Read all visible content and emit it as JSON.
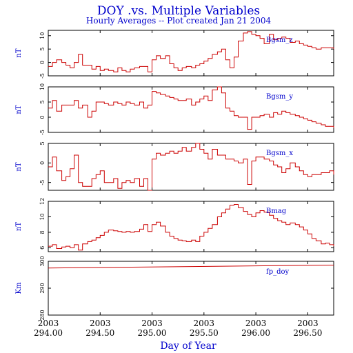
{
  "title": "DOY .vs. Multiple Variables",
  "subtitle": "Hourly Averages -- Plot created Jan 21 2004",
  "colors": {
    "text": "#0000cc",
    "trace": "#cc0000",
    "axis": "#000000"
  },
  "chart_data": {
    "type": "line",
    "xlabel": "Day of Year",
    "xlim": [
      294.0,
      296.5
    ],
    "x_ticks": [
      294.0,
      294.5,
      295.0,
      295.5,
      296.0,
      296.5
    ],
    "x_tick_year": "2003",
    "x_tick_labels": [
      "294.00",
      "294.50",
      "295.00",
      "295.50",
      "296.00",
      "296.50"
    ],
    "panels": [
      {
        "name": "Bgsm_z",
        "ylabel": "nT",
        "ylim": [
          -5,
          12
        ],
        "y_ticks": [
          -5,
          0,
          5,
          10
        ],
        "y_tick_labels": [
          "-5",
          "0",
          "5",
          "10"
        ],
        "x": [
          294.0,
          294.04,
          294.08,
          294.13,
          294.17,
          294.21,
          294.25,
          294.29,
          294.33,
          294.38,
          294.42,
          294.46,
          294.5,
          294.54,
          294.58,
          294.63,
          294.67,
          294.71,
          294.75,
          294.79,
          294.83,
          294.88,
          294.92,
          294.96,
          295.0,
          295.04,
          295.08,
          295.13,
          295.17,
          295.21,
          295.25,
          295.29,
          295.33,
          295.38,
          295.42,
          295.46,
          295.5,
          295.54,
          295.58,
          295.63,
          295.67,
          295.71,
          295.75,
          295.79,
          295.83,
          295.88,
          295.92,
          295.96,
          296.0,
          296.04,
          296.08,
          296.13,
          296.17,
          296.21,
          296.25,
          296.29,
          296.33,
          296.38,
          296.42,
          296.46,
          296.5,
          296.54,
          296.58,
          296.63,
          296.67,
          296.71,
          296.75
        ],
        "y": [
          -1.5,
          0.0,
          1.0,
          0.0,
          -1.0,
          -2.0,
          0.0,
          3.0,
          -1.0,
          -1.0,
          -2.5,
          -1.5,
          -3.0,
          -2.5,
          -3.0,
          -3.5,
          -2.0,
          -3.0,
          -3.5,
          -2.5,
          -2.0,
          -1.5,
          -1.5,
          -3.5,
          1.0,
          2.5,
          1.5,
          2.5,
          -0.5,
          -2.0,
          -3.0,
          -2.0,
          -1.5,
          -2.0,
          -1.0,
          -0.5,
          0.5,
          1.5,
          3.0,
          4.0,
          5.0,
          1.0,
          -2.0,
          2.0,
          8.0,
          11.0,
          11.5,
          10.5,
          10.0,
          9.0,
          7.0,
          10.5,
          8.5,
          9.0,
          9.5,
          9.0,
          7.5,
          8.0,
          7.0,
          6.5,
          6.0,
          5.5,
          5.0,
          5.5,
          5.5,
          5.5,
          5.0
        ]
      },
      {
        "name": "Bgsm_y",
        "ylabel": "nT",
        "ylim": [
          -5,
          10
        ],
        "y_ticks": [
          -5,
          0,
          5,
          10
        ],
        "y_tick_labels": [
          "-5",
          "0",
          "5",
          "10"
        ],
        "x": [
          294.0,
          294.04,
          294.08,
          294.13,
          294.17,
          294.21,
          294.25,
          294.29,
          294.33,
          294.38,
          294.42,
          294.46,
          294.5,
          294.54,
          294.58,
          294.63,
          294.67,
          294.71,
          294.75,
          294.79,
          294.83,
          294.88,
          294.92,
          294.96,
          295.0,
          295.04,
          295.08,
          295.13,
          295.17,
          295.21,
          295.25,
          295.29,
          295.33,
          295.38,
          295.42,
          295.46,
          295.5,
          295.54,
          295.58,
          295.63,
          295.67,
          295.71,
          295.75,
          295.79,
          295.83,
          295.88,
          295.92,
          295.96,
          296.0,
          296.04,
          296.08,
          296.13,
          296.17,
          296.21,
          296.25,
          296.29,
          296.33,
          296.38,
          296.42,
          296.46,
          296.5,
          296.54,
          296.58,
          296.63,
          296.67,
          296.71,
          296.75
        ],
        "y": [
          3.0,
          5.5,
          2.0,
          4.0,
          4.0,
          4.0,
          5.5,
          3.0,
          4.0,
          0.0,
          2.0,
          5.0,
          5.0,
          4.5,
          4.0,
          5.0,
          4.5,
          4.0,
          5.0,
          4.5,
          4.0,
          5.0,
          3.0,
          4.0,
          8.5,
          8.0,
          7.5,
          7.0,
          6.5,
          6.0,
          5.5,
          5.5,
          6.0,
          4.0,
          5.0,
          6.0,
          7.0,
          5.5,
          9.0,
          10.0,
          8.0,
          3.0,
          2.0,
          0.5,
          0.0,
          0.0,
          -4.0,
          0.0,
          0.0,
          0.5,
          1.0,
          0.0,
          1.5,
          1.0,
          2.0,
          1.5,
          1.0,
          0.5,
          0.0,
          -0.5,
          -1.0,
          -1.5,
          -2.0,
          -2.5,
          -3.0,
          -3.0,
          -3.5
        ]
      },
      {
        "name": "Bgsm_x",
        "ylabel": "nT",
        "ylim": [
          -7,
          5
        ],
        "y_ticks": [
          -5,
          0,
          5
        ],
        "y_tick_labels": [
          "-5",
          "0",
          "5"
        ],
        "x": [
          294.0,
          294.04,
          294.08,
          294.13,
          294.17,
          294.21,
          294.25,
          294.29,
          294.33,
          294.38,
          294.42,
          294.46,
          294.5,
          294.54,
          294.58,
          294.63,
          294.67,
          294.71,
          294.75,
          294.79,
          294.83,
          294.88,
          294.92,
          294.96,
          295.0,
          295.04,
          295.08,
          295.13,
          295.17,
          295.21,
          295.25,
          295.29,
          295.33,
          295.38,
          295.42,
          295.46,
          295.5,
          295.54,
          295.58,
          295.63,
          295.67,
          295.71,
          295.75,
          295.79,
          295.83,
          295.88,
          295.92,
          295.96,
          296.0,
          296.04,
          296.08,
          296.13,
          296.17,
          296.21,
          296.25,
          296.29,
          296.33,
          296.38,
          296.42,
          296.46,
          296.5,
          296.54,
          296.58,
          296.63,
          296.67,
          296.71,
          296.75
        ],
        "y": [
          -1.0,
          1.5,
          -2.0,
          -4.5,
          -3.5,
          -1.5,
          2.0,
          -5.0,
          -6.0,
          -6.0,
          -4.0,
          -3.0,
          -2.0,
          -5.0,
          -5.0,
          -4.0,
          -6.5,
          -5.0,
          -4.5,
          -5.0,
          -4.0,
          -6.0,
          -4.0,
          -7.0,
          1.0,
          2.5,
          2.0,
          2.5,
          3.0,
          2.5,
          3.0,
          4.0,
          3.0,
          4.0,
          5.0,
          3.5,
          2.5,
          1.0,
          3.5,
          2.0,
          2.0,
          1.0,
          1.0,
          0.5,
          0.0,
          1.0,
          -5.5,
          0.5,
          1.5,
          1.5,
          1.0,
          0.5,
          -0.5,
          -1.0,
          -2.5,
          -1.5,
          0.0,
          -1.0,
          -2.0,
          -3.0,
          -3.5,
          -3.0,
          -3.0,
          -2.5,
          -2.5,
          -2.0,
          -3.0
        ]
      },
      {
        "name": "Bmag",
        "ylabel": "nT",
        "ylim": [
          5.5,
          12
        ],
        "y_ticks": [
          6,
          8,
          10,
          12
        ],
        "y_tick_labels": [
          "6",
          "8",
          "10",
          "12"
        ],
        "x": [
          294.0,
          294.04,
          294.08,
          294.13,
          294.17,
          294.21,
          294.25,
          294.29,
          294.33,
          294.38,
          294.42,
          294.46,
          294.5,
          294.54,
          294.58,
          294.63,
          294.67,
          294.71,
          294.75,
          294.79,
          294.83,
          294.88,
          294.92,
          294.96,
          295.0,
          295.04,
          295.08,
          295.13,
          295.17,
          295.21,
          295.25,
          295.29,
          295.33,
          295.38,
          295.42,
          295.46,
          295.5,
          295.54,
          295.58,
          295.63,
          295.67,
          295.71,
          295.75,
          295.79,
          295.83,
          295.88,
          295.92,
          295.96,
          296.0,
          296.04,
          296.08,
          296.13,
          296.17,
          296.21,
          296.25,
          296.29,
          296.33,
          296.38,
          296.42,
          296.46,
          296.5,
          296.54,
          296.58,
          296.63,
          296.67,
          296.71,
          296.75
        ],
        "y": [
          6.2,
          6.4,
          5.9,
          6.1,
          6.2,
          6.0,
          6.4,
          5.7,
          6.5,
          6.8,
          7.0,
          7.3,
          7.6,
          8.0,
          8.3,
          8.2,
          8.1,
          8.0,
          8.1,
          8.0,
          8.1,
          8.4,
          9.0,
          8.1,
          9.0,
          9.3,
          8.8,
          8.0,
          7.5,
          7.2,
          7.0,
          6.9,
          6.8,
          7.0,
          6.8,
          7.5,
          8.0,
          8.5,
          9.0,
          10.0,
          10.5,
          11.0,
          11.5,
          11.6,
          11.2,
          10.7,
          10.3,
          10.0,
          10.5,
          10.8,
          10.6,
          10.2,
          9.8,
          9.5,
          9.3,
          9.0,
          9.2,
          9.0,
          8.7,
          8.3,
          7.8,
          7.2,
          6.9,
          6.5,
          6.6,
          6.4,
          6.2
        ]
      },
      {
        "name": "fp_doy",
        "ylabel": "Km",
        "ylim": [
          280,
          300
        ],
        "y_ticks": [
          280,
          290,
          300
        ],
        "y_tick_labels": [
          "280",
          "290",
          "300"
        ],
        "x": [
          294.0,
          296.75
        ],
        "y": [
          294.0,
          296.75
        ]
      }
    ]
  }
}
